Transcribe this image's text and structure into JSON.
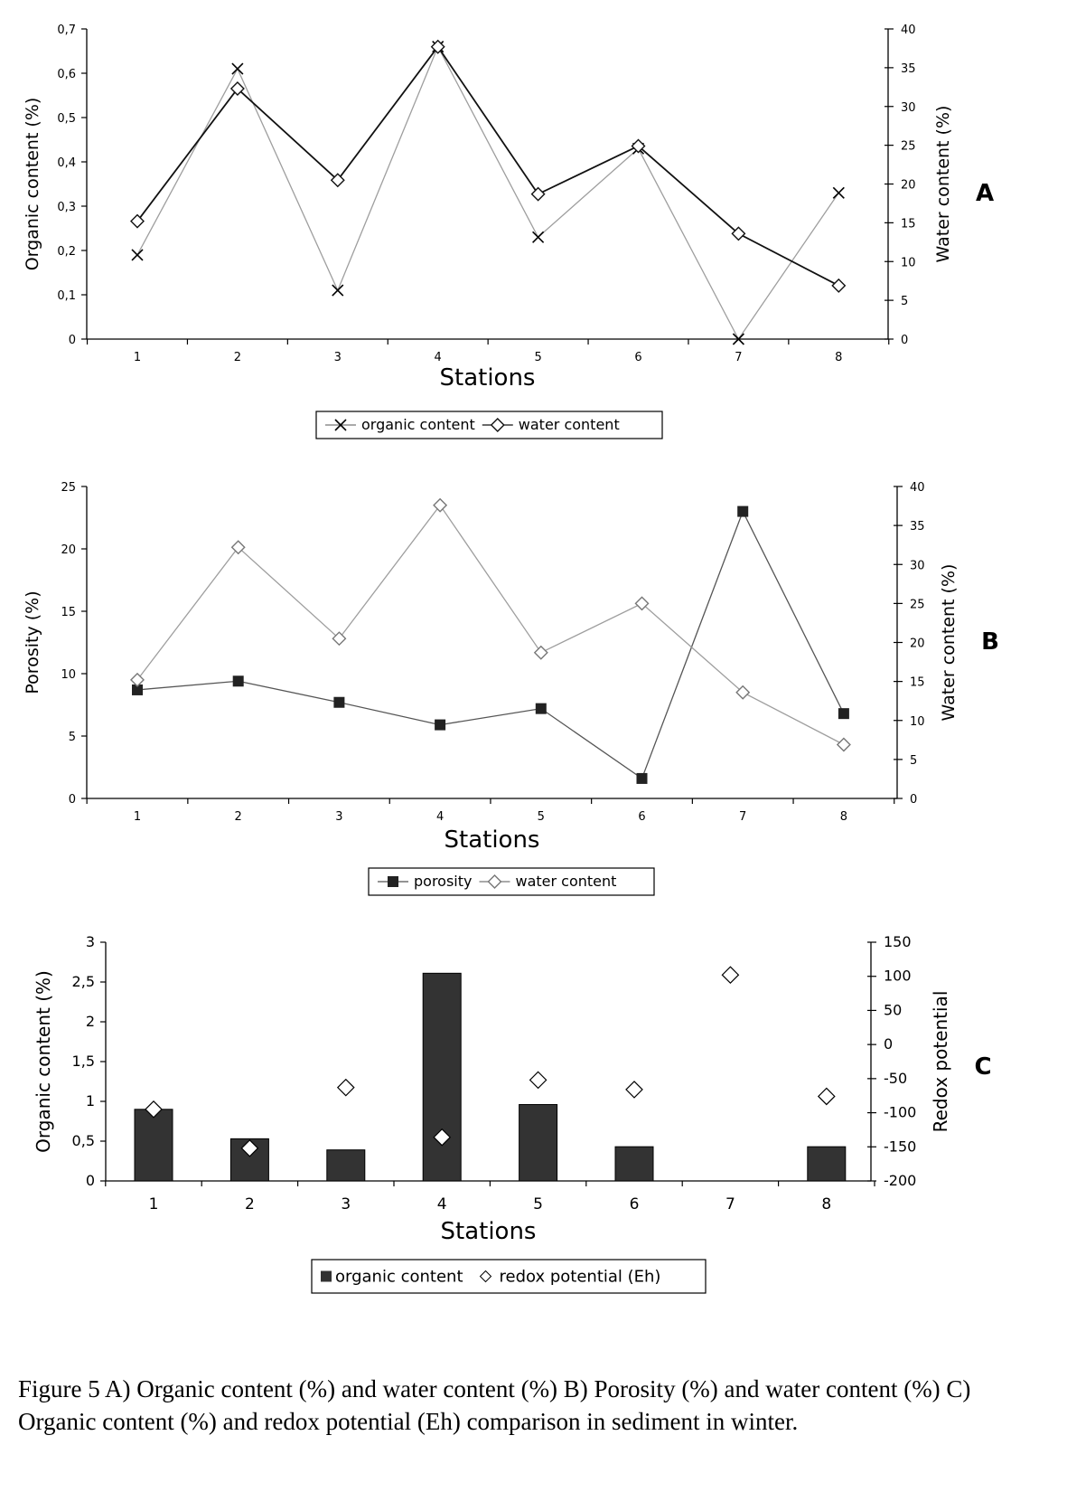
{
  "caption": "Figure 5 A) Organic content (%) and water content (%) B) Porosity (%) and water content (%) C) Organic content (%) and redox potential (Eh) comparison in sediment in winter.",
  "chart_data": [
    {
      "id": "A",
      "type": "line",
      "panel_label": "A",
      "categories": [
        "1",
        "2",
        "3",
        "4",
        "5",
        "6",
        "7",
        "8"
      ],
      "xlabel": "Stations",
      "ylabel_left": "Organic content (%)",
      "ylabel_right": "Water content (%)",
      "ylim_left": [
        0,
        0.7
      ],
      "ylim_right": [
        0,
        40
      ],
      "yticks_left": [
        "0",
        "0,1",
        "0,2",
        "0,3",
        "0,4",
        "0,5",
        "0,6",
        "0,7"
      ],
      "yticks_right": [
        "0",
        "5",
        "10",
        "15",
        "20",
        "25",
        "30",
        "35",
        "40"
      ],
      "legend": "bottom",
      "series": [
        {
          "name": "organic content",
          "axis": "left",
          "marker": "x",
          "color": "#9e9e9e",
          "values": [
            0.19,
            0.61,
            0.11,
            0.66,
            0.23,
            0.43,
            0.0,
            0.33
          ]
        },
        {
          "name": "water content",
          "axis": "right",
          "marker": "diamond",
          "color": "#111111",
          "values": [
            15.2,
            32.3,
            20.5,
            37.7,
            18.7,
            24.9,
            13.6,
            6.9
          ]
        }
      ]
    },
    {
      "id": "B",
      "type": "line",
      "panel_label": "B",
      "categories": [
        "1",
        "2",
        "3",
        "4",
        "5",
        "6",
        "7",
        "8"
      ],
      "xlabel": "Stations",
      "ylabel_left": "Porosity (%)",
      "ylabel_right": "Water content (%)",
      "ylim_left": [
        0,
        25
      ],
      "ylim_right": [
        0,
        40
      ],
      "yticks_left": [
        "0",
        "5",
        "10",
        "15",
        "20",
        "25"
      ],
      "yticks_right": [
        "0",
        "5",
        "10",
        "15",
        "20",
        "25",
        "30",
        "35",
        "40"
      ],
      "legend": "bottom",
      "series": [
        {
          "name": "porosity",
          "axis": "left",
          "marker": "square",
          "color": "#555555",
          "values": [
            8.7,
            9.4,
            7.7,
            5.9,
            7.2,
            1.6,
            23.0,
            6.8
          ]
        },
        {
          "name": "water content",
          "axis": "right",
          "marker": "diamond",
          "color": "#9e9e9e",
          "values": [
            15.2,
            32.2,
            20.5,
            37.6,
            18.7,
            25.0,
            13.6,
            6.9
          ]
        }
      ]
    },
    {
      "id": "C",
      "type": "bar",
      "panel_label": "C",
      "categories": [
        "1",
        "2",
        "3",
        "4",
        "5",
        "6",
        "7",
        "8"
      ],
      "xlabel": "Stations",
      "ylabel_left": "Organic content (%)",
      "ylabel_right": "Redox potential",
      "ylim_left": [
        0,
        3
      ],
      "ylim_right": [
        -200,
        150
      ],
      "yticks_left": [
        "0",
        "0,5",
        "1",
        "1,5",
        "2",
        "2,5",
        "3"
      ],
      "yticks_right": [
        "-200",
        "-150",
        "-100",
        "-50",
        "0",
        "50",
        "100",
        "150"
      ],
      "legend": "bottom",
      "series": [
        {
          "name": "organic content",
          "axis": "left",
          "kind": "bar",
          "color": "#333333",
          "values": [
            0.9,
            0.53,
            0.39,
            2.61,
            0.96,
            0.43,
            0.0,
            0.43
          ]
        },
        {
          "name": "redox potential (Eh)",
          "axis": "right",
          "kind": "scatter",
          "marker": "diamond",
          "color": "#000000",
          "values": [
            -95,
            -152,
            -63,
            -136,
            -52,
            -66,
            102,
            -76
          ]
        }
      ]
    }
  ]
}
